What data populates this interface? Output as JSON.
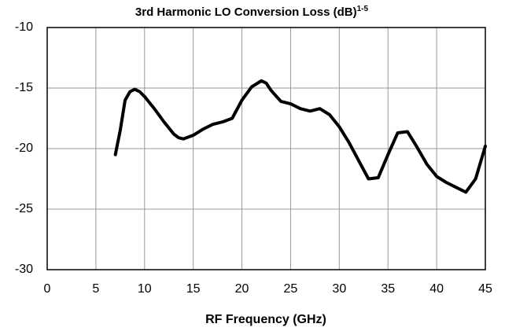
{
  "chart_data": {
    "type": "line",
    "title": "3rd Harmonic LO Conversion Loss (dB)",
    "title_superscript": "1-5",
    "x_label": "RF Frequency (GHz)",
    "x": [
      7,
      7.5,
      8,
      8.5,
      9,
      9.5,
      10,
      11,
      12,
      13,
      13.5,
      14,
      15,
      16,
      17,
      18,
      19,
      20,
      21,
      22,
      22.5,
      23,
      24,
      25,
      26,
      27,
      28,
      29,
      30,
      31,
      32,
      33,
      34,
      35,
      36,
      37,
      38,
      39,
      40,
      41,
      42,
      43,
      44,
      45
    ],
    "series": [
      {
        "name": "Conversion Loss",
        "color": "#000000",
        "values": [
          -20.5,
          -18.5,
          -16.0,
          -15.3,
          -15.1,
          -15.3,
          -15.7,
          -16.7,
          -17.8,
          -18.8,
          -19.1,
          -19.2,
          -18.9,
          -18.4,
          -18.0,
          -17.8,
          -17.5,
          -16.0,
          -14.9,
          -14.4,
          -14.6,
          -15.2,
          -16.1,
          -16.3,
          -16.7,
          -16.9,
          -16.7,
          -17.2,
          -18.2,
          -19.5,
          -21.0,
          -22.5,
          -22.4,
          -20.5,
          -18.7,
          -18.6,
          -19.9,
          -21.3,
          -22.3,
          -22.8,
          -23.2,
          -23.6,
          -22.5,
          -19.8
        ]
      }
    ],
    "xlim": [
      0,
      45
    ],
    "xticks": [
      0,
      5,
      10,
      15,
      20,
      25,
      30,
      35,
      40,
      45
    ],
    "ylim": [
      -30,
      -10
    ],
    "yticks": [
      -10,
      -15,
      -20,
      -25,
      -30
    ],
    "grid": true
  }
}
